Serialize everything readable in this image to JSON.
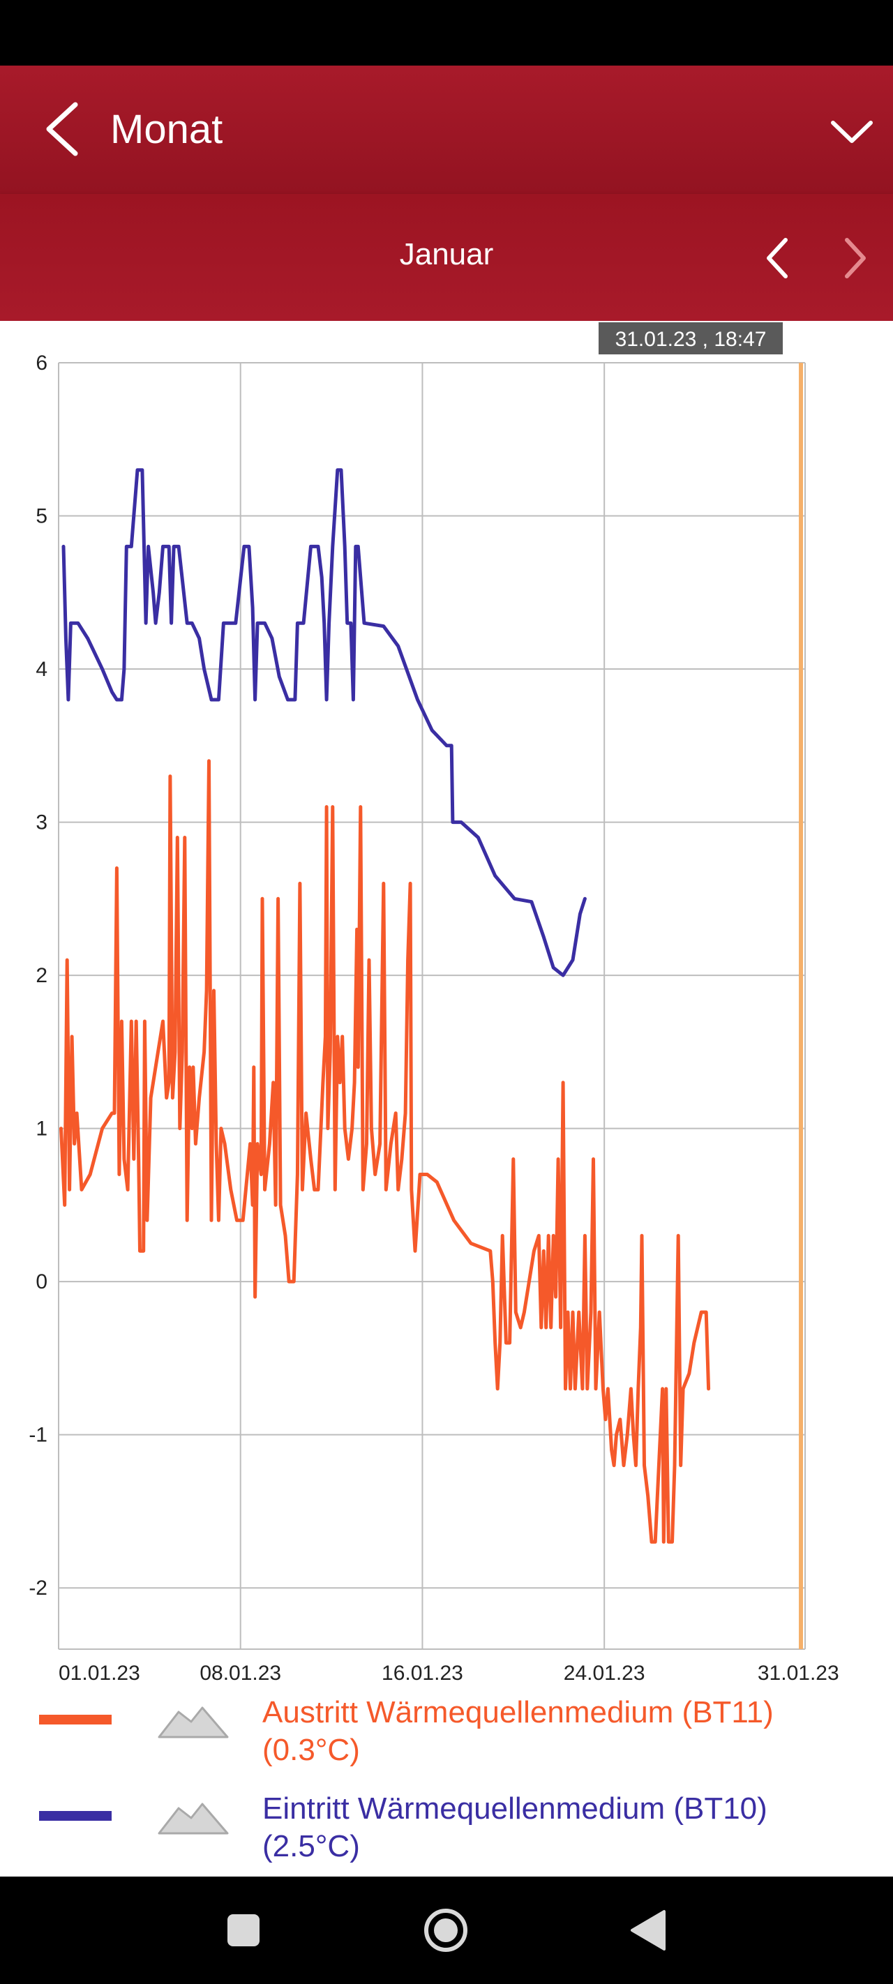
{
  "header": {
    "title": "Monat"
  },
  "subheader": {
    "month": "Januar"
  },
  "tooltip": {
    "text": "31.01.23 , 18:47"
  },
  "colors": {
    "header_bg": "#9e1826",
    "series_out": "#f5592a",
    "series_in": "#3a2ea3",
    "cursor": "#f5b06a",
    "grid": "#bdbdbd"
  },
  "chart_data": {
    "type": "line",
    "ylim": [
      -2.4,
      6
    ],
    "yticks": [
      "6",
      "5",
      "4",
      "3",
      "2",
      "1",
      "0",
      "-1",
      "-2"
    ],
    "xlim": [
      1,
      31.78
    ],
    "xticks": [
      {
        "x": 1,
        "label": "01.01.23"
      },
      {
        "x": 8.5,
        "label": "08.01.23"
      },
      {
        "x": 16,
        "label": "16.01.23"
      },
      {
        "x": 23.5,
        "label": "24.01.23"
      },
      {
        "x": 31.5,
        "label": "31.01.23"
      }
    ],
    "grid": true,
    "legend_position": "bottom",
    "series": [
      {
        "name": "Austritt Wärmequellenmedium (BT11)",
        "value_label": "(0.3°C)",
        "color": "#f5592a",
        "points": [
          [
            1.1,
            1.0
          ],
          [
            1.25,
            0.5
          ],
          [
            1.35,
            2.1
          ],
          [
            1.45,
            0.6
          ],
          [
            1.55,
            1.6
          ],
          [
            1.65,
            0.9
          ],
          [
            1.75,
            1.1
          ],
          [
            1.95,
            0.6
          ],
          [
            2.3,
            0.7
          ],
          [
            2.8,
            1.0
          ],
          [
            3.2,
            1.1
          ],
          [
            3.3,
            1.1
          ],
          [
            3.4,
            2.7
          ],
          [
            3.5,
            0.7
          ],
          [
            3.6,
            1.7
          ],
          [
            3.7,
            0.8
          ],
          [
            3.85,
            0.6
          ],
          [
            4.0,
            1.7
          ],
          [
            4.1,
            0.8
          ],
          [
            4.2,
            1.7
          ],
          [
            4.3,
            0.8
          ],
          [
            4.35,
            0.2
          ],
          [
            4.5,
            0.2
          ],
          [
            4.55,
            1.7
          ],
          [
            4.65,
            0.4
          ],
          [
            4.8,
            1.2
          ],
          [
            5.1,
            1.5
          ],
          [
            5.3,
            1.7
          ],
          [
            5.45,
            1.2
          ],
          [
            5.55,
            1.3
          ],
          [
            5.6,
            3.3
          ],
          [
            5.7,
            1.2
          ],
          [
            5.8,
            1.5
          ],
          [
            5.9,
            2.9
          ],
          [
            6.0,
            1.0
          ],
          [
            6.1,
            1.5
          ],
          [
            6.2,
            2.9
          ],
          [
            6.3,
            0.4
          ],
          [
            6.4,
            1.4
          ],
          [
            6.5,
            1.0
          ],
          [
            6.55,
            1.4
          ],
          [
            6.65,
            0.9
          ],
          [
            6.8,
            1.2
          ],
          [
            7.0,
            1.5
          ],
          [
            7.1,
            1.9
          ],
          [
            7.2,
            3.4
          ],
          [
            7.3,
            0.4
          ],
          [
            7.4,
            1.9
          ],
          [
            7.5,
            0.9
          ],
          [
            7.6,
            0.4
          ],
          [
            7.7,
            1.0
          ],
          [
            7.85,
            0.9
          ],
          [
            8.1,
            0.6
          ],
          [
            8.35,
            0.4
          ],
          [
            8.6,
            0.4
          ],
          [
            8.9,
            0.9
          ],
          [
            9.0,
            0.5
          ],
          [
            9.05,
            1.4
          ],
          [
            9.1,
            -0.1
          ],
          [
            9.2,
            0.9
          ],
          [
            9.35,
            0.7
          ],
          [
            9.4,
            2.5
          ],
          [
            9.5,
            0.6
          ],
          [
            9.7,
            0.9
          ],
          [
            9.85,
            1.3
          ],
          [
            9.95,
            0.5
          ],
          [
            10.05,
            2.5
          ],
          [
            10.15,
            0.5
          ],
          [
            10.35,
            0.3
          ],
          [
            10.5,
            0.0
          ],
          [
            10.7,
            0.0
          ],
          [
            10.85,
            0.7
          ],
          [
            10.95,
            2.6
          ],
          [
            11.05,
            0.6
          ],
          [
            11.2,
            1.1
          ],
          [
            11.4,
            0.8
          ],
          [
            11.55,
            0.6
          ],
          [
            11.7,
            0.6
          ],
          [
            11.9,
            1.3
          ],
          [
            12.0,
            1.6
          ],
          [
            12.05,
            3.1
          ],
          [
            12.1,
            1.0
          ],
          [
            12.2,
            1.5
          ],
          [
            12.3,
            3.1
          ],
          [
            12.4,
            0.6
          ],
          [
            12.5,
            1.6
          ],
          [
            12.6,
            1.3
          ],
          [
            12.7,
            1.6
          ],
          [
            12.8,
            1.0
          ],
          [
            12.95,
            0.8
          ],
          [
            13.1,
            1.0
          ],
          [
            13.2,
            1.3
          ],
          [
            13.3,
            2.3
          ],
          [
            13.35,
            1.4
          ],
          [
            13.45,
            3.1
          ],
          [
            13.55,
            0.6
          ],
          [
            13.7,
            0.9
          ],
          [
            13.8,
            2.1
          ],
          [
            13.9,
            1.0
          ],
          [
            14.05,
            0.7
          ],
          [
            14.25,
            0.9
          ],
          [
            14.4,
            2.6
          ],
          [
            14.5,
            0.6
          ],
          [
            14.7,
            0.9
          ],
          [
            14.9,
            1.1
          ],
          [
            15.0,
            0.6
          ],
          [
            15.15,
            0.8
          ],
          [
            15.3,
            1.1
          ],
          [
            15.4,
            2.1
          ],
          [
            15.5,
            2.6
          ],
          [
            15.55,
            0.6
          ],
          [
            15.7,
            0.2
          ],
          [
            15.9,
            0.7
          ],
          [
            16.2,
            0.7
          ],
          [
            16.6,
            0.65
          ],
          [
            17.3,
            0.4
          ],
          [
            18.0,
            0.25
          ],
          [
            18.8,
            0.2
          ],
          [
            18.9,
            0.0
          ],
          [
            19.0,
            -0.4
          ],
          [
            19.1,
            -0.7
          ],
          [
            19.2,
            -0.4
          ],
          [
            19.3,
            0.3
          ],
          [
            19.45,
            -0.4
          ],
          [
            19.6,
            -0.4
          ],
          [
            19.75,
            0.8
          ],
          [
            19.85,
            -0.2
          ],
          [
            20.05,
            -0.3
          ],
          [
            20.2,
            -0.2
          ],
          [
            20.4,
            0.0
          ],
          [
            20.6,
            0.2
          ],
          [
            20.8,
            0.3
          ],
          [
            20.9,
            -0.3
          ],
          [
            21.0,
            0.2
          ],
          [
            21.1,
            -0.3
          ],
          [
            21.2,
            0.3
          ],
          [
            21.3,
            -0.3
          ],
          [
            21.4,
            0.3
          ],
          [
            21.5,
            -0.1
          ],
          [
            21.6,
            0.8
          ],
          [
            21.7,
            -0.3
          ],
          [
            21.8,
            1.3
          ],
          [
            21.9,
            -0.7
          ],
          [
            22.0,
            -0.2
          ],
          [
            22.1,
            -0.7
          ],
          [
            22.2,
            -0.2
          ],
          [
            22.3,
            -0.7
          ],
          [
            22.45,
            -0.2
          ],
          [
            22.6,
            -0.7
          ],
          [
            22.7,
            0.3
          ],
          [
            22.8,
            -0.7
          ],
          [
            22.95,
            -0.2
          ],
          [
            23.05,
            0.8
          ],
          [
            23.15,
            -0.7
          ],
          [
            23.3,
            -0.2
          ],
          [
            23.45,
            -0.7
          ],
          [
            23.55,
            -0.9
          ],
          [
            23.65,
            -0.7
          ],
          [
            23.8,
            -1.1
          ],
          [
            23.9,
            -1.2
          ],
          [
            24.0,
            -1.0
          ],
          [
            24.15,
            -0.9
          ],
          [
            24.3,
            -1.2
          ],
          [
            24.45,
            -1.0
          ],
          [
            24.6,
            -0.7
          ],
          [
            24.7,
            -1.0
          ],
          [
            24.8,
            -1.2
          ],
          [
            24.9,
            -0.7
          ],
          [
            25.0,
            -0.3
          ],
          [
            25.05,
            0.3
          ],
          [
            25.15,
            -1.2
          ],
          [
            25.3,
            -1.4
          ],
          [
            25.45,
            -1.7
          ],
          [
            25.6,
            -1.7
          ],
          [
            25.75,
            -1.2
          ],
          [
            25.9,
            -0.7
          ],
          [
            25.95,
            -1.7
          ],
          [
            26.05,
            -0.7
          ],
          [
            26.15,
            -1.7
          ],
          [
            26.3,
            -1.7
          ],
          [
            26.4,
            -1.2
          ],
          [
            26.55,
            0.3
          ],
          [
            26.65,
            -1.2
          ],
          [
            26.75,
            -0.7
          ],
          [
            27.0,
            -0.6
          ],
          [
            27.2,
            -0.4
          ],
          [
            27.5,
            -0.2
          ],
          [
            27.7,
            -0.2
          ],
          [
            27.8,
            -0.7
          ]
        ]
      },
      {
        "name": "Eintritt Wärmequellenmedium (BT10)",
        "value_label": "(2.5°C)",
        "color": "#3a2ea3",
        "points": [
          [
            1.2,
            4.8
          ],
          [
            1.3,
            4.2
          ],
          [
            1.4,
            3.8
          ],
          [
            1.5,
            4.3
          ],
          [
            1.8,
            4.3
          ],
          [
            2.2,
            4.2
          ],
          [
            2.8,
            4.0
          ],
          [
            3.2,
            3.85
          ],
          [
            3.4,
            3.8
          ],
          [
            3.6,
            3.8
          ],
          [
            3.7,
            4.0
          ],
          [
            3.8,
            4.8
          ],
          [
            4.0,
            4.8
          ],
          [
            4.25,
            5.3
          ],
          [
            4.45,
            5.3
          ],
          [
            4.6,
            4.3
          ],
          [
            4.7,
            4.8
          ],
          [
            4.9,
            4.5
          ],
          [
            5.0,
            4.3
          ],
          [
            5.15,
            4.5
          ],
          [
            5.3,
            4.8
          ],
          [
            5.55,
            4.8
          ],
          [
            5.65,
            4.3
          ],
          [
            5.75,
            4.8
          ],
          [
            5.95,
            4.8
          ],
          [
            6.3,
            4.3
          ],
          [
            6.5,
            4.3
          ],
          [
            6.8,
            4.2
          ],
          [
            7.0,
            4.0
          ],
          [
            7.3,
            3.8
          ],
          [
            7.6,
            3.8
          ],
          [
            7.8,
            4.3
          ],
          [
            8.3,
            4.3
          ],
          [
            8.65,
            4.8
          ],
          [
            8.85,
            4.8
          ],
          [
            9.0,
            4.4
          ],
          [
            9.1,
            3.8
          ],
          [
            9.2,
            4.3
          ],
          [
            9.5,
            4.3
          ],
          [
            9.8,
            4.2
          ],
          [
            10.1,
            3.95
          ],
          [
            10.45,
            3.8
          ],
          [
            10.75,
            3.8
          ],
          [
            10.85,
            4.3
          ],
          [
            11.1,
            4.3
          ],
          [
            11.4,
            4.8
          ],
          [
            11.7,
            4.8
          ],
          [
            11.85,
            4.6
          ],
          [
            11.95,
            4.3
          ],
          [
            12.05,
            3.8
          ],
          [
            12.15,
            4.3
          ],
          [
            12.3,
            4.8
          ],
          [
            12.5,
            5.3
          ],
          [
            12.65,
            5.3
          ],
          [
            12.8,
            4.8
          ],
          [
            12.9,
            4.3
          ],
          [
            13.05,
            4.3
          ],
          [
            13.15,
            3.8
          ],
          [
            13.25,
            4.8
          ],
          [
            13.35,
            4.8
          ],
          [
            13.6,
            4.3
          ],
          [
            14.4,
            4.28
          ],
          [
            15.0,
            4.15
          ],
          [
            15.8,
            3.8
          ],
          [
            16.4,
            3.6
          ],
          [
            17.0,
            3.5
          ],
          [
            17.2,
            3.5
          ],
          [
            17.25,
            3.0
          ],
          [
            17.6,
            3.0
          ],
          [
            18.3,
            2.9
          ],
          [
            19.0,
            2.65
          ],
          [
            19.8,
            2.5
          ],
          [
            20.5,
            2.48
          ],
          [
            21.0,
            2.25
          ],
          [
            21.4,
            2.05
          ],
          [
            21.8,
            2.0
          ],
          [
            22.2,
            2.1
          ],
          [
            22.5,
            2.4
          ],
          [
            22.7,
            2.5
          ]
        ]
      }
    ]
  }
}
